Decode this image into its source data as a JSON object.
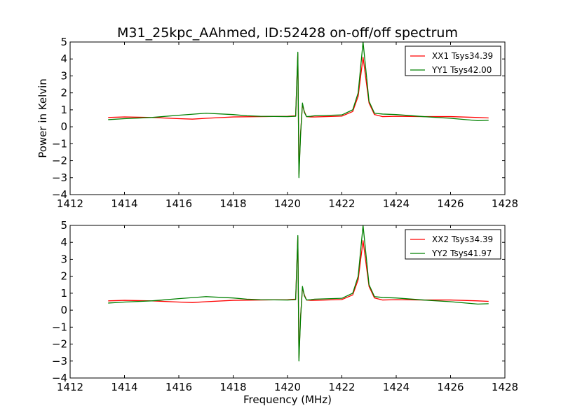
{
  "chart_data": {
    "type": "line",
    "title": "M31_25kpc_AAhmed, ID:52428 on-off/off spectrum",
    "ylabel": "Power in Kelvin",
    "xlabel": "Frequency (MHz)",
    "panels": [
      {
        "xlim": [
          1412,
          1428
        ],
        "ylim": [
          -4,
          5
        ],
        "x_ticks": [
          1412,
          1414,
          1416,
          1418,
          1420,
          1422,
          1424,
          1426,
          1428
        ],
        "y_ticks": [
          -4,
          -3,
          -2,
          -1,
          0,
          1,
          2,
          3,
          4,
          5
        ],
        "legend_position": "top-right",
        "series": [
          {
            "name": "XX1 Tsys34.39",
            "color": "#ff0000",
            "x": [
              1413.4,
              1414,
              1415,
              1416,
              1416.5,
              1417,
              1418,
              1419,
              1420,
              1420.3,
              1420.38,
              1420.42,
              1420.48,
              1420.55,
              1420.62,
              1420.7,
              1420.85,
              1421,
              1422,
              1422.4,
              1422.6,
              1422.78,
              1423,
              1423.2,
              1423.5,
              1424,
              1425,
              1426,
              1427,
              1427.4
            ],
            "values": [
              0.55,
              0.58,
              0.55,
              0.48,
              0.45,
              0.5,
              0.58,
              0.6,
              0.62,
              0.65,
              4.3,
              -2.8,
              -0.4,
              1.3,
              0.9,
              0.6,
              0.58,
              0.58,
              0.63,
              0.9,
              1.8,
              4.1,
              1.4,
              0.72,
              0.6,
              0.62,
              0.6,
              0.6,
              0.55,
              0.52
            ]
          },
          {
            "name": "YY1 Tsys42.00",
            "color": "#008000",
            "x": [
              1413.4,
              1414,
              1415,
              1416,
              1417,
              1418,
              1418.5,
              1419,
              1420,
              1420.3,
              1420.38,
              1420.42,
              1420.48,
              1420.55,
              1420.62,
              1420.7,
              1420.85,
              1421,
              1422,
              1422.4,
              1422.6,
              1422.78,
              1423,
              1423.2,
              1423.5,
              1424,
              1425,
              1426,
              1427,
              1427.4
            ],
            "values": [
              0.42,
              0.48,
              0.55,
              0.68,
              0.8,
              0.72,
              0.65,
              0.62,
              0.6,
              0.62,
              4.4,
              -3.0,
              -0.5,
              1.4,
              0.85,
              0.6,
              0.62,
              0.65,
              0.7,
              1.0,
              2.0,
              5.0,
              1.5,
              0.8,
              0.75,
              0.72,
              0.6,
              0.5,
              0.36,
              0.38
            ]
          }
        ]
      },
      {
        "xlim": [
          1412,
          1428
        ],
        "ylim": [
          -4,
          5
        ],
        "x_ticks": [
          1412,
          1414,
          1416,
          1418,
          1420,
          1422,
          1424,
          1426,
          1428
        ],
        "y_ticks": [
          -4,
          -3,
          -2,
          -1,
          0,
          1,
          2,
          3,
          4,
          5
        ],
        "legend_position": "top-right",
        "series": [
          {
            "name": "XX2 Tsys34.39",
            "color": "#ff0000",
            "x": [
              1413.4,
              1414,
              1415,
              1416,
              1416.5,
              1417,
              1418,
              1419,
              1420,
              1420.3,
              1420.38,
              1420.42,
              1420.48,
              1420.55,
              1420.62,
              1420.7,
              1420.85,
              1421,
              1422,
              1422.4,
              1422.6,
              1422.78,
              1423,
              1423.2,
              1423.5,
              1424,
              1425,
              1426,
              1427,
              1427.4
            ],
            "values": [
              0.55,
              0.58,
              0.55,
              0.48,
              0.45,
              0.5,
              0.58,
              0.6,
              0.62,
              0.65,
              4.3,
              -2.8,
              -0.4,
              1.3,
              0.9,
              0.6,
              0.58,
              0.58,
              0.63,
              0.9,
              1.8,
              4.1,
              1.4,
              0.72,
              0.6,
              0.62,
              0.6,
              0.6,
              0.55,
              0.52
            ]
          },
          {
            "name": "YY2 Tsys41.97",
            "color": "#008000",
            "x": [
              1413.4,
              1414,
              1415,
              1416,
              1417,
              1418,
              1418.5,
              1419,
              1420,
              1420.3,
              1420.38,
              1420.42,
              1420.48,
              1420.55,
              1420.62,
              1420.7,
              1420.85,
              1421,
              1422,
              1422.4,
              1422.6,
              1422.78,
              1423,
              1423.2,
              1423.5,
              1424,
              1425,
              1426,
              1427,
              1427.4
            ],
            "values": [
              0.42,
              0.48,
              0.55,
              0.68,
              0.8,
              0.72,
              0.65,
              0.62,
              0.6,
              0.62,
              4.4,
              -3.0,
              -0.5,
              1.4,
              0.85,
              0.6,
              0.62,
              0.65,
              0.7,
              1.0,
              2.0,
              5.0,
              1.5,
              0.8,
              0.75,
              0.72,
              0.6,
              0.5,
              0.36,
              0.38
            ]
          }
        ]
      }
    ]
  }
}
